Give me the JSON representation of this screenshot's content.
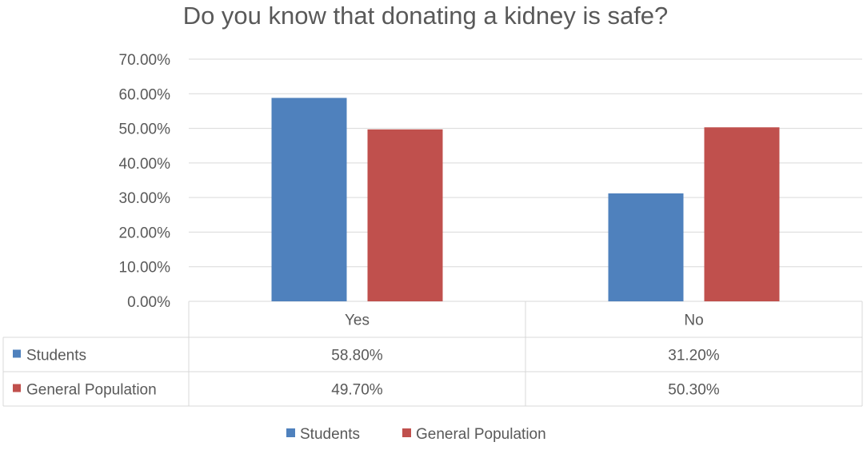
{
  "chart_data": {
    "type": "bar",
    "title": "Do you know that donating a kidney is safe?",
    "categories": [
      "Yes",
      "No"
    ],
    "series": [
      {
        "name": "Students",
        "values": [
          58.8,
          31.2
        ],
        "color": "#4F81BD",
        "table_values": [
          "58.80%",
          "31.20%"
        ]
      },
      {
        "name": "General Population",
        "values": [
          49.7,
          50.3
        ],
        "color": "#C0504D",
        "table_values": [
          "49.70%",
          "50.30%"
        ]
      }
    ],
    "ylim": [
      0,
      70
    ],
    "yticks": [
      "0.00%",
      "10.00%",
      "20.00%",
      "30.00%",
      "40.00%",
      "50.00%",
      "60.00%",
      "70.00%"
    ],
    "grid": true,
    "legend_position": "bottom",
    "data_table": true,
    "gridline_color": "#D9D9D9",
    "text_color": "#595959"
  }
}
